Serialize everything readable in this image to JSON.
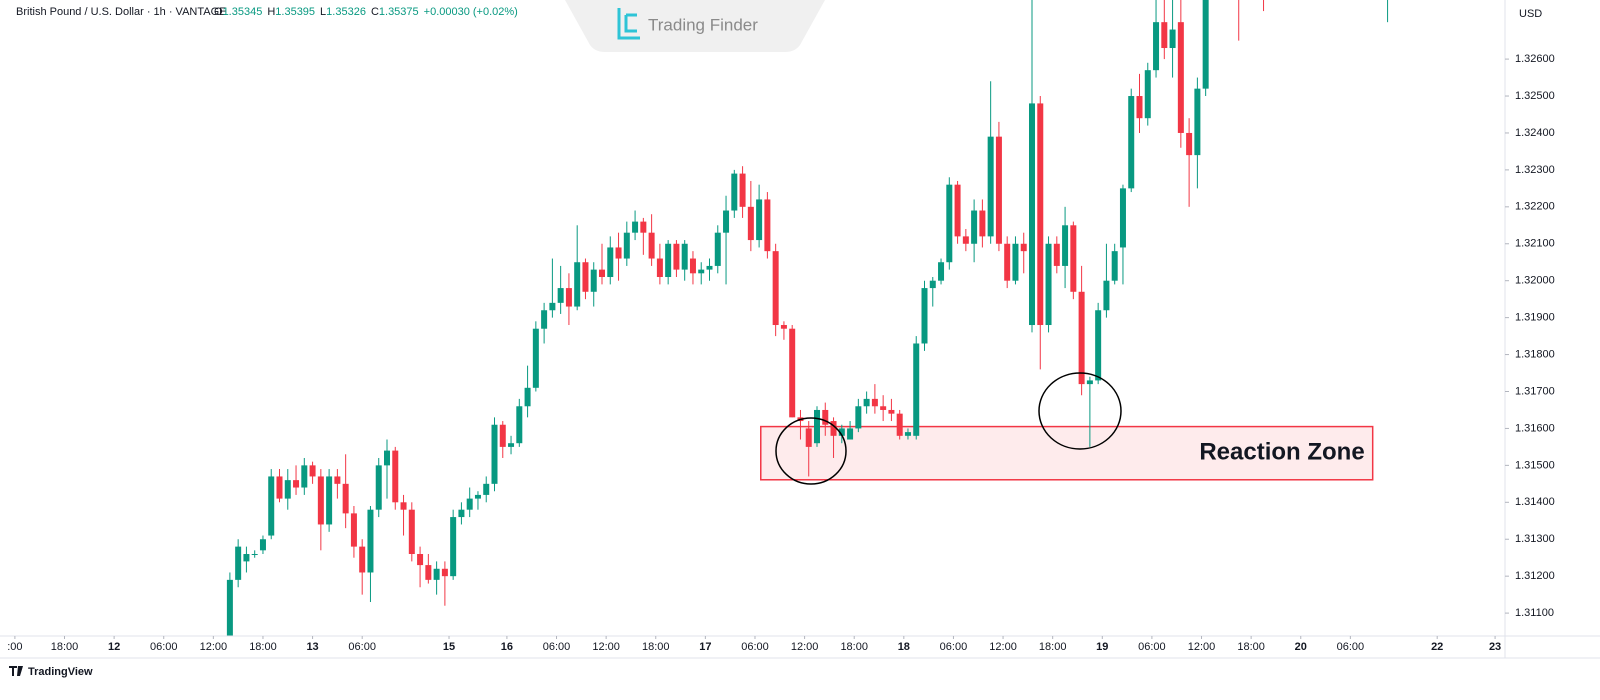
{
  "header": {
    "symbol": "British Pound / U.S. Dollar · 1h · VANTAGE",
    "ohlc": [
      {
        "label": "O",
        "value": "1.35345"
      },
      {
        "label": "H",
        "value": "1.35395"
      },
      {
        "label": "L",
        "value": "1.35326"
      },
      {
        "label": "C",
        "value": "1.35375"
      }
    ],
    "change": "+0.00030 (+0.02%)"
  },
  "watermark": "Trading Finder",
  "footer": "TradingView",
  "chart_data": {
    "type": "candlestick",
    "currency": "USD",
    "grid": false,
    "up_color": "#089981",
    "down_color": "#f23645",
    "x": [
      26,
      27,
      28,
      29,
      30,
      31,
      32,
      33,
      34,
      35,
      36,
      37,
      38,
      39,
      40,
      41,
      42,
      43,
      44,
      45,
      46,
      47,
      48,
      49,
      50,
      51,
      52,
      53,
      54,
      55,
      56,
      57,
      58,
      59,
      60,
      61,
      62,
      63,
      64,
      65,
      66,
      67,
      68,
      69,
      70,
      71,
      72,
      73,
      74,
      75,
      76,
      77,
      78,
      79,
      80,
      81,
      82,
      83,
      84,
      85,
      86,
      87,
      88,
      89,
      90,
      91,
      92,
      93,
      94,
      95,
      96,
      97,
      98,
      99,
      100,
      101,
      102,
      103,
      104,
      105,
      106,
      107,
      108,
      109,
      110,
      111,
      112,
      113,
      114,
      115,
      116,
      117,
      118,
      119,
      120,
      121,
      122,
      123,
      124,
      125,
      126,
      127,
      128,
      129,
      130,
      131,
      132,
      133,
      134,
      135,
      136,
      137,
      138,
      139,
      140,
      141,
      142,
      143,
      144,
      148,
      151,
      166
    ],
    "open": [
      1.31,
      1.3119,
      1.3124,
      1.3126,
      1.3127,
      1.3131,
      1.3147,
      1.3141,
      1.3146,
      1.3144,
      1.315,
      1.3147,
      1.3134,
      1.3147,
      1.3145,
      1.3137,
      1.3128,
      1.3121,
      1.3138,
      1.315,
      1.3154,
      1.314,
      1.3138,
      1.3126,
      1.3123,
      1.3119,
      1.3122,
      1.312,
      1.3136,
      1.3138,
      1.3141,
      1.3142,
      1.3145,
      1.3161,
      1.3155,
      1.3156,
      1.3166,
      1.3171,
      1.3187,
      1.3192,
      1.3194,
      1.3198,
      1.3193,
      1.3205,
      1.3197,
      1.3203,
      1.3201,
      1.3209,
      1.3206,
      1.3213,
      1.3216,
      1.3213,
      1.3206,
      1.3201,
      1.321,
      1.3203,
      1.3206,
      1.3202,
      1.3203,
      1.3204,
      1.3213,
      1.3219,
      1.3229,
      1.322,
      1.3211,
      1.3222,
      1.3208,
      1.3188,
      1.3187,
      1.3163,
      1.316,
      1.3156,
      1.3165,
      1.3162,
      1.3158,
      1.3157,
      1.316,
      1.3166,
      1.3168,
      1.3166,
      1.3165,
      1.3164,
      1.3158,
      1.3158,
      1.3183,
      1.3198,
      1.32,
      1.3205,
      1.3226,
      1.3212,
      1.321,
      1.3219,
      1.3212,
      1.3239,
      1.321,
      1.32,
      1.321,
      1.3188,
      1.3248,
      1.3188,
      1.321,
      1.3204,
      1.3215,
      1.3197,
      1.3172,
      1.3173,
      1.3192,
      1.32,
      1.3209,
      1.3225,
      1.325,
      1.3244,
      1.3257,
      1.327,
      1.3263,
      1.327,
      1.324,
      1.3234,
      1.3252,
      1.329,
      1.3285,
      1.328
    ],
    "high": [
      1.3121,
      1.313,
      1.3128,
      1.3127,
      1.3131,
      1.3149,
      1.3149,
      1.3149,
      1.315,
      1.3152,
      1.3151,
      1.3149,
      1.3149,
      1.3149,
      1.3153,
      1.3139,
      1.313,
      1.3139,
      1.3152,
      1.3157,
      1.3155,
      1.3142,
      1.314,
      1.3128,
      1.3126,
      1.3124,
      1.3124,
      1.3138,
      1.314,
      1.3144,
      1.3143,
      1.3147,
      1.3163,
      1.3162,
      1.3158,
      1.3168,
      1.3177,
      1.3189,
      1.3194,
      1.3206,
      1.3204,
      1.3202,
      1.3215,
      1.3206,
      1.3205,
      1.321,
      1.3212,
      1.3213,
      1.3216,
      1.3219,
      1.3217,
      1.3218,
      1.321,
      1.3211,
      1.3211,
      1.3211,
      1.3208,
      1.3205,
      1.3206,
      1.3215,
      1.3223,
      1.323,
      1.3231,
      1.3227,
      1.3226,
      1.3224,
      1.321,
      1.3189,
      1.3188,
      1.3165,
      1.3162,
      1.3166,
      1.3167,
      1.3163,
      1.3161,
      1.3162,
      1.3168,
      1.317,
      1.3172,
      1.3169,
      1.3168,
      1.3165,
      1.316,
      1.3185,
      1.32,
      1.3201,
      1.3206,
      1.3228,
      1.3227,
      1.3214,
      1.3222,
      1.3222,
      1.3254,
      1.3243,
      1.3212,
      1.3212,
      1.3213,
      1.328,
      1.325,
      1.3212,
      1.3212,
      1.322,
      1.3216,
      1.3204,
      1.3174,
      1.3194,
      1.321,
      1.321,
      1.3226,
      1.3252,
      1.3256,
      1.3259,
      1.328,
      1.328,
      1.328,
      1.328,
      1.3244,
      1.3255,
      1.3285,
      1.3295,
      1.329,
      1.3295
    ],
    "low": [
      1.3098,
      1.3117,
      1.3121,
      1.3125,
      1.3126,
      1.313,
      1.314,
      1.3138,
      1.3142,
      1.3142,
      1.3145,
      1.3127,
      1.3132,
      1.3141,
      1.3133,
      1.3125,
      1.3115,
      1.3113,
      1.3136,
      1.3141,
      1.3138,
      1.3131,
      1.3124,
      1.3117,
      1.3118,
      1.3115,
      1.3112,
      1.3119,
      1.3134,
      1.3136,
      1.3138,
      1.314,
      1.3143,
      1.3152,
      1.3153,
      1.3155,
      1.3163,
      1.317,
      1.3183,
      1.319,
      1.3191,
      1.3188,
      1.3192,
      1.3195,
      1.3193,
      1.3199,
      1.3199,
      1.32,
      1.3204,
      1.3211,
      1.3207,
      1.3204,
      1.3199,
      1.3199,
      1.3201,
      1.32,
      1.3199,
      1.3199,
      1.32,
      1.3202,
      1.3199,
      1.3217,
      1.3217,
      1.3208,
      1.3209,
      1.3206,
      1.3185,
      1.3184,
      1.3163,
      1.3157,
      1.3147,
      1.3155,
      1.3158,
      1.3152,
      1.3156,
      1.3157,
      1.3159,
      1.3164,
      1.3164,
      1.3162,
      1.3162,
      1.3157,
      1.3157,
      1.3157,
      1.3181,
      1.3193,
      1.3199,
      1.3203,
      1.321,
      1.3208,
      1.3205,
      1.3209,
      1.321,
      1.3208,
      1.3198,
      1.3199,
      1.3202,
      1.3186,
      1.3176,
      1.3186,
      1.3202,
      1.3198,
      1.3195,
      1.3169,
      1.3155,
      1.3172,
      1.319,
      1.3199,
      1.3199,
      1.3224,
      1.324,
      1.3242,
      1.3255,
      1.326,
      1.3255,
      1.3236,
      1.322,
      1.3225,
      1.325,
      1.3265,
      1.3273,
      1.327
    ],
    "close": [
      1.3119,
      1.3128,
      1.3126,
      1.3126,
      1.313,
      1.3147,
      1.3141,
      1.3146,
      1.3144,
      1.315,
      1.3147,
      1.3134,
      1.3147,
      1.3145,
      1.3137,
      1.3128,
      1.3121,
      1.3138,
      1.315,
      1.3154,
      1.314,
      1.3138,
      1.3126,
      1.3123,
      1.3119,
      1.3122,
      1.312,
      1.3136,
      1.3138,
      1.3141,
      1.3142,
      1.3145,
      1.3161,
      1.3155,
      1.3156,
      1.3166,
      1.3171,
      1.3187,
      1.3192,
      1.3194,
      1.3198,
      1.3193,
      1.3205,
      1.3197,
      1.3203,
      1.3201,
      1.3209,
      1.3206,
      1.3213,
      1.3216,
      1.3213,
      1.3206,
      1.3201,
      1.321,
      1.3203,
      1.321,
      1.3202,
      1.3203,
      1.3204,
      1.3213,
      1.3219,
      1.3229,
      1.322,
      1.3211,
      1.3222,
      1.3208,
      1.3188,
      1.3187,
      1.3163,
      1.3162,
      1.3155,
      1.3165,
      1.3161,
      1.3158,
      1.316,
      1.316,
      1.3166,
      1.3168,
      1.3166,
      1.3165,
      1.3164,
      1.3158,
      1.3159,
      1.3183,
      1.3198,
      1.32,
      1.3205,
      1.3226,
      1.3212,
      1.321,
      1.3219,
      1.3212,
      1.3239,
      1.321,
      1.32,
      1.321,
      1.3208,
      1.3248,
      1.3188,
      1.321,
      1.3204,
      1.3215,
      1.3197,
      1.3172,
      1.3173,
      1.3192,
      1.32,
      1.3208,
      1.3225,
      1.325,
      1.3244,
      1.3257,
      1.327,
      1.3263,
      1.3268,
      1.324,
      1.3234,
      1.3252,
      1.328,
      1.328,
      1.328,
      1.329
    ],
    "xlim": [
      -1.8,
      180.2
    ],
    "ylim": [
      1.31038,
      1.3276
    ],
    "xticks": [
      {
        "value": 0,
        "label": ":00"
      },
      {
        "value": 6,
        "label": "18:00"
      },
      {
        "value": 12,
        "label": "12"
      },
      {
        "value": 18,
        "label": "06:00"
      },
      {
        "value": 24,
        "label": "12:00"
      },
      {
        "value": 30,
        "label": "18:00"
      },
      {
        "value": 36,
        "label": "13"
      },
      {
        "value": 42,
        "label": "06:00"
      },
      {
        "value": 52.5,
        "label": "15"
      },
      {
        "value": 59.5,
        "label": "16"
      },
      {
        "value": 65.5,
        "label": "06:00"
      },
      {
        "value": 71.5,
        "label": "12:00"
      },
      {
        "value": 77.5,
        "label": "18:00"
      },
      {
        "value": 83.5,
        "label": "17"
      },
      {
        "value": 89.5,
        "label": "06:00"
      },
      {
        "value": 95.5,
        "label": "12:00"
      },
      {
        "value": 101.5,
        "label": "18:00"
      },
      {
        "value": 107.5,
        "label": "18"
      },
      {
        "value": 113.5,
        "label": "06:00"
      },
      {
        "value": 119.5,
        "label": "12:00"
      },
      {
        "value": 125.5,
        "label": "18:00"
      },
      {
        "value": 131.5,
        "label": "19"
      },
      {
        "value": 137.5,
        "label": "06:00"
      },
      {
        "value": 143.5,
        "label": "12:00"
      },
      {
        "value": 149.5,
        "label": "18:00"
      },
      {
        "value": 155.5,
        "label": "20"
      },
      {
        "value": 161.5,
        "label": "06:00"
      },
      {
        "value": 172,
        "label": "22"
      },
      {
        "value": 179,
        "label": "23"
      }
    ],
    "yticks": [
      {
        "value": 1.311,
        "label": "1.31100"
      },
      {
        "value": 1.312,
        "label": "1.31200"
      },
      {
        "value": 1.313,
        "label": "1.31300"
      },
      {
        "value": 1.314,
        "label": "1.31400"
      },
      {
        "value": 1.315,
        "label": "1.31500"
      },
      {
        "value": 1.316,
        "label": "1.31600"
      },
      {
        "value": 1.317,
        "label": "1.31700"
      },
      {
        "value": 1.318,
        "label": "1.31800"
      },
      {
        "value": 1.319,
        "label": "1.31900"
      },
      {
        "value": 1.32,
        "label": "1.32000"
      },
      {
        "value": 1.321,
        "label": "1.32100"
      },
      {
        "value": 1.322,
        "label": "1.32200"
      },
      {
        "value": 1.323,
        "label": "1.32300"
      },
      {
        "value": 1.324,
        "label": "1.32400"
      },
      {
        "value": 1.325,
        "label": "1.32500"
      },
      {
        "value": 1.326,
        "label": "1.32600"
      }
    ],
    "zone": {
      "label": "Reaction Zone",
      "xlim": [
        90.2,
        164.2
      ],
      "ylim": [
        1.31461,
        1.31605
      ]
    }
  }
}
